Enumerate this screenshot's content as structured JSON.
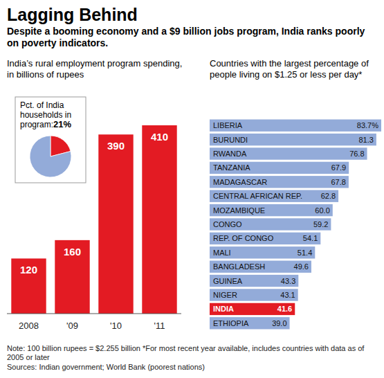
{
  "title": "Lagging Behind",
  "subtitle": "Despite a booming economy and a $9 billion jobs program, India ranks poorly on poverty indicators.",
  "note": "Note: 100 billion rupees = $2.255 billion *For most recent year available, includes countries with data as of 2005 or later",
  "source": "Sources: Indian government; World Bank (poorest nations)",
  "chart_data": [
    {
      "type": "bar",
      "title": "India’s rural employment program spending, in billions of rupees",
      "categories": [
        "2008",
        "'09",
        "'10",
        "'11"
      ],
      "values": [
        120,
        160,
        390,
        410
      ],
      "color": "#e31b23",
      "ylim": [
        0,
        410
      ],
      "data_labels": true,
      "tick_labels": "x"
    },
    {
      "type": "pie",
      "title": "Pct. of India households in program:",
      "values": [
        21,
        79
      ],
      "value_labels": [
        "21%",
        null
      ],
      "colors": [
        "#e31b23",
        "#93abd9"
      ],
      "data_labels": true
    },
    {
      "type": "bar",
      "orientation": "horizontal",
      "title": "Countries with the largest percentage of people living on $1.25 or less per day*",
      "categories": [
        "LIBERIA",
        "BURUNDI",
        "RWANDA",
        "TANZANIA",
        "MADAGASCAR",
        "CENTRAL AFRICAN REP.",
        "MOZAMBIQUE",
        "CONGO",
        "REP. OF CONGO",
        "MALI",
        "BANGLADESH",
        "GUINEA",
        "NIGER",
        "INDIA",
        "ETHIOPIA"
      ],
      "values": [
        83.7,
        81.3,
        76.8,
        67.9,
        67.8,
        62.8,
        60.0,
        59.2,
        54.1,
        51.4,
        49.6,
        43.3,
        43.1,
        41.6,
        39.0
      ],
      "value_labels": [
        "83.7%",
        "81.3",
        "76.8",
        "67.9",
        "67.8",
        "62.8",
        "60.0",
        "59.2",
        "54.1",
        "51.4",
        "49.6",
        "43.3",
        "43.1",
        "41.6",
        "39.0"
      ],
      "colors": [
        "#93abd9",
        "#93abd9",
        "#93abd9",
        "#93abd9",
        "#93abd9",
        "#93abd9",
        "#93abd9",
        "#93abd9",
        "#93abd9",
        "#93abd9",
        "#93abd9",
        "#93abd9",
        "#93abd9",
        "#e31b23",
        "#93abd9"
      ],
      "xlim": [
        0,
        83.7
      ],
      "data_labels": true,
      "tick_labels": "y"
    }
  ]
}
